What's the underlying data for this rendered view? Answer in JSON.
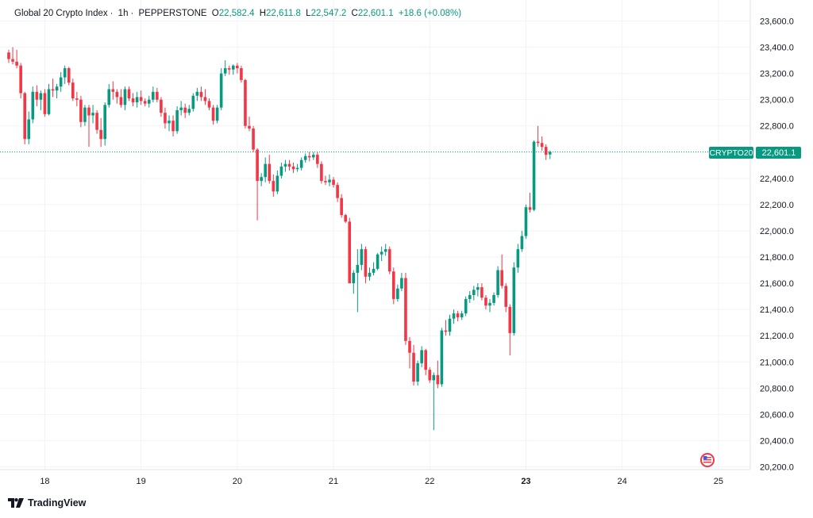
{
  "header": {
    "symbol": "Global 20 Crypto Index",
    "interval": "1h",
    "exchange": "PEPPERSTONE",
    "o_label": "O",
    "o_value": "22,582.4",
    "h_label": "H",
    "h_value": "22,611.8",
    "l_label": "L",
    "l_value": "22,547.2",
    "c_label": "C",
    "c_value": "22,601.1",
    "change": "+18.6 (+0.08%)"
  },
  "price_badge": {
    "symbol": "CRYPTO20",
    "price": "22,601.1"
  },
  "brand": {
    "name": "TradingView"
  },
  "colors": {
    "up": "#089981",
    "down": "#f23645",
    "grid": "#f0f3fa",
    "axis": "#e0e3eb"
  },
  "chart_data": {
    "type": "candlestick",
    "interval": "1h",
    "last_price": 22601.1,
    "ylim": [
      20150,
      23700
    ],
    "y_ticks": [
      20200,
      20400,
      20600,
      20800,
      21000,
      21200,
      21400,
      21600,
      21800,
      22000,
      22200,
      22400,
      22600,
      22800,
      23000,
      23200,
      23400,
      23600
    ],
    "y_tick_labels": [
      "20,200.0",
      "20,400.0",
      "20,600.0",
      "20,800.0",
      "21,000.0",
      "21,200.0",
      "21,400.0",
      "21,600.0",
      "21,800.0",
      "22,000.0",
      "22,200.0",
      "22,400.0",
      "22,600.0",
      "22,800.0",
      "23,000.0",
      "23,200.0",
      "23,400.0",
      "23,600.0"
    ],
    "x_ticks": [
      {
        "label": "18",
        "at": 9,
        "bold": false
      },
      {
        "label": "19",
        "at": 33,
        "bold": false
      },
      {
        "label": "20",
        "at": 57,
        "bold": false
      },
      {
        "label": "21",
        "at": 81,
        "bold": false
      },
      {
        "label": "22",
        "at": 105,
        "bold": false
      },
      {
        "label": "23",
        "at": 129,
        "bold": true
      },
      {
        "label": "24",
        "at": 153,
        "bold": false
      },
      {
        "label": "25",
        "at": 177,
        "bold": false
      }
    ],
    "candles": [
      [
        23360,
        23380,
        23280,
        23310
      ],
      [
        23310,
        23400,
        23270,
        23290
      ],
      [
        23290,
        23380,
        23240,
        23260
      ],
      [
        23260,
        23280,
        23010,
        23050
      ],
      [
        23050,
        23060,
        22660,
        22700
      ],
      [
        22700,
        22910,
        22660,
        22850
      ],
      [
        22850,
        23100,
        22820,
        23060
      ],
      [
        23060,
        23110,
        22950,
        23000
      ],
      [
        23000,
        23070,
        22920,
        23050
      ],
      [
        23050,
        23080,
        22870,
        22890
      ],
      [
        22890,
        23120,
        22880,
        23080
      ],
      [
        23080,
        23160,
        23020,
        23070
      ],
      [
        23070,
        23120,
        23010,
        23100
      ],
      [
        23100,
        23210,
        23060,
        23170
      ],
      [
        23170,
        23260,
        23120,
        23240
      ],
      [
        23240,
        23250,
        23110,
        23130
      ],
      [
        23130,
        23160,
        22990,
        23010
      ],
      [
        23010,
        23060,
        22950,
        23000
      ],
      [
        23000,
        23030,
        22790,
        22830
      ],
      [
        22830,
        22960,
        22800,
        22940
      ],
      [
        22940,
        22960,
        22640,
        22880
      ],
      [
        22880,
        22960,
        22820,
        22900
      ],
      [
        22900,
        22920,
        22740,
        22770
      ],
      [
        22770,
        22860,
        22640,
        22700
      ],
      [
        22700,
        22980,
        22650,
        22960
      ],
      [
        22960,
        23120,
        22940,
        23080
      ],
      [
        23080,
        23140,
        23000,
        23060
      ],
      [
        23060,
        23080,
        22970,
        23020
      ],
      [
        23020,
        23080,
        22940,
        22960
      ],
      [
        22960,
        23100,
        22920,
        23080
      ],
      [
        23080,
        23100,
        22990,
        23010
      ],
      [
        23010,
        23050,
        22950,
        22980
      ],
      [
        22980,
        23060,
        22940,
        23020
      ],
      [
        23020,
        23070,
        22960,
        22990
      ],
      [
        22990,
        23010,
        22950,
        22970
      ],
      [
        22970,
        23030,
        22940,
        23000
      ],
      [
        23000,
        23100,
        22980,
        23060
      ],
      [
        23060,
        23090,
        22980,
        23000
      ],
      [
        23000,
        23020,
        22870,
        22900
      ],
      [
        22900,
        22940,
        22780,
        22820
      ],
      [
        22820,
        22880,
        22760,
        22840
      ],
      [
        22840,
        22880,
        22720,
        22760
      ],
      [
        22760,
        22950,
        22740,
        22920
      ],
      [
        22920,
        22990,
        22880,
        22940
      ],
      [
        22940,
        22970,
        22860,
        22900
      ],
      [
        22900,
        22960,
        22880,
        22930
      ],
      [
        22930,
        23050,
        22910,
        23030
      ],
      [
        23030,
        23090,
        22990,
        23060
      ],
      [
        23060,
        23100,
        22990,
        23020
      ],
      [
        23020,
        23080,
        22960,
        22990
      ],
      [
        22990,
        23010,
        22920,
        22940
      ],
      [
        22940,
        22960,
        22810,
        22840
      ],
      [
        22840,
        22960,
        22820,
        22940
      ],
      [
        22940,
        23240,
        22920,
        23200
      ],
      [
        23200,
        23300,
        23180,
        23240
      ],
      [
        23240,
        23260,
        23190,
        23230
      ],
      [
        23230,
        23270,
        23190,
        23260
      ],
      [
        23260,
        23280,
        23200,
        23240
      ],
      [
        23240,
        23260,
        23130,
        23150
      ],
      [
        23150,
        23160,
        22780,
        22800
      ],
      [
        22800,
        22870,
        22760,
        22780
      ],
      [
        22780,
        22800,
        22600,
        22620
      ],
      [
        22620,
        22630,
        22080,
        22380
      ],
      [
        22380,
        22440,
        22340,
        22410
      ],
      [
        22410,
        22560,
        22370,
        22510
      ],
      [
        22510,
        22580,
        22360,
        22380
      ],
      [
        22380,
        22430,
        22260,
        22300
      ],
      [
        22300,
        22460,
        22280,
        22420
      ],
      [
        22420,
        22520,
        22400,
        22490
      ],
      [
        22490,
        22540,
        22450,
        22510
      ],
      [
        22510,
        22540,
        22460,
        22490
      ],
      [
        22490,
        22520,
        22440,
        22470
      ],
      [
        22470,
        22510,
        22450,
        22480
      ],
      [
        22480,
        22560,
        22460,
        22540
      ],
      [
        22540,
        22590,
        22520,
        22570
      ],
      [
        22570,
        22600,
        22530,
        22560
      ],
      [
        22560,
        22600,
        22540,
        22580
      ],
      [
        22580,
        22600,
        22480,
        22510
      ],
      [
        22510,
        22530,
        22360,
        22380
      ],
      [
        22380,
        22420,
        22350,
        22370
      ],
      [
        22370,
        22430,
        22340,
        22390
      ],
      [
        22390,
        22410,
        22330,
        22350
      ],
      [
        22350,
        22370,
        22220,
        22250
      ],
      [
        22250,
        22280,
        22100,
        22120
      ],
      [
        22120,
        22130,
        22060,
        22070
      ],
      [
        22070,
        22100,
        21600,
        21600
      ],
      [
        21600,
        21700,
        21520,
        21680
      ],
      [
        21680,
        21860,
        21380,
        21740
      ],
      [
        21740,
        21900,
        21700,
        21860
      ],
      [
        21860,
        21880,
        21600,
        21650
      ],
      [
        21650,
        21720,
        21620,
        21680
      ],
      [
        21680,
        21760,
        21660,
        21710
      ],
      [
        21710,
        21830,
        21700,
        21820
      ],
      [
        21820,
        21880,
        21770,
        21840
      ],
      [
        21840,
        21900,
        21810,
        21860
      ],
      [
        21860,
        21880,
        21670,
        21690
      ],
      [
        21690,
        21720,
        21440,
        21480
      ],
      [
        21480,
        21590,
        21460,
        21560
      ],
      [
        21560,
        21680,
        21540,
        21640
      ],
      [
        21640,
        21680,
        21130,
        21160
      ],
      [
        21160,
        21190,
        20950,
        21070
      ],
      [
        21070,
        21130,
        20820,
        20850
      ],
      [
        20850,
        21010,
        20820,
        20990
      ],
      [
        20990,
        21120,
        20960,
        21090
      ],
      [
        21090,
        21100,
        20900,
        20940
      ],
      [
        20940,
        20960,
        20840,
        20860
      ],
      [
        20860,
        20920,
        20480,
        20900
      ],
      [
        20900,
        21010,
        20800,
        20830
      ],
      [
        20830,
        21260,
        20810,
        21240
      ],
      [
        21240,
        21320,
        21200,
        21230
      ],
      [
        21230,
        21360,
        21200,
        21330
      ],
      [
        21330,
        21400,
        21290,
        21370
      ],
      [
        21370,
        21390,
        21310,
        21340
      ],
      [
        21340,
        21390,
        21320,
        21370
      ],
      [
        21370,
        21500,
        21350,
        21480
      ],
      [
        21480,
        21540,
        21450,
        21510
      ],
      [
        21510,
        21580,
        21470,
        21550
      ],
      [
        21550,
        21600,
        21500,
        21570
      ],
      [
        21570,
        21600,
        21470,
        21490
      ],
      [
        21490,
        21510,
        21400,
        21430
      ],
      [
        21430,
        21480,
        21380,
        21450
      ],
      [
        21450,
        21530,
        21430,
        21510
      ],
      [
        21510,
        21730,
        21490,
        21700
      ],
      [
        21700,
        21820,
        21560,
        21580
      ],
      [
        21580,
        21600,
        21380,
        21420
      ],
      [
        21420,
        21440,
        21050,
        21220
      ],
      [
        21220,
        21760,
        21200,
        21720
      ],
      [
        21720,
        21900,
        21680,
        21860
      ],
      [
        21860,
        22000,
        21840,
        21960
      ],
      [
        21960,
        22200,
        21940,
        22180
      ],
      [
        22180,
        22290,
        22140,
        22160
      ],
      [
        22160,
        22690,
        22150,
        22680
      ],
      [
        22680,
        22800,
        22640,
        22670
      ],
      [
        22670,
        22720,
        22610,
        22640
      ],
      [
        22640,
        22660,
        22540,
        22580
      ],
      [
        22582.4,
        22611.8,
        22547.2,
        22601.1
      ]
    ]
  }
}
